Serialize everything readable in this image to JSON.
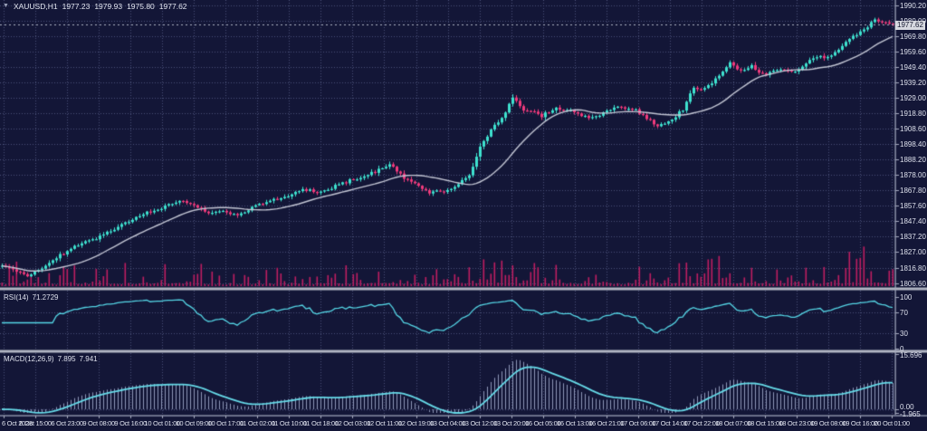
{
  "header": {
    "symbol": "XAUUSD,H1",
    "open": "1977.23",
    "high": "1979.93",
    "low": "1975.80",
    "close": "1977.62"
  },
  "indicators": {
    "rsi": {
      "label": "RSI(14)",
      "value": "71.2729"
    },
    "macd": {
      "label": "MACD(12,26,9)",
      "main": "7.895",
      "signal": "7.941"
    }
  },
  "chart_data": {
    "type": "candlestick",
    "symbol": "XAUUSD",
    "timeframe": "H1",
    "price_axis": {
      "ticks": [
        "1990.20",
        "1980.00",
        "1969.80",
        "1959.60",
        "1949.40",
        "1939.20",
        "1929.00",
        "1918.80",
        "1908.60",
        "1898.40",
        "1888.20",
        "1878.00",
        "1867.80",
        "1857.60",
        "1847.40",
        "1837.20",
        "1827.00",
        "1816.80",
        "1806.60"
      ],
      "top": 1990.2,
      "step": 10.2,
      "current": "1977.62"
    },
    "rsi_axis": {
      "ticks": [
        [
          "100",
          100
        ],
        [
          "70",
          70
        ],
        [
          "30",
          30
        ],
        [
          "0",
          0
        ]
      ],
      "levels": [
        70,
        30
      ]
    },
    "macd_axis": {
      "ticks": [
        [
          "15.696",
          15.696
        ],
        [
          "0.00",
          0
        ],
        [
          "-1.965",
          -1.965
        ]
      ]
    },
    "time_axis": {
      "labels": [
        "6 Oct 2023",
        "6 Oct 15:00",
        "6 Oct 23:00",
        "9 Oct 08:00",
        "9 Oct 16:00",
        "10 Oct 01:00",
        "10 Oct 09:00",
        "10 Oct 17:00",
        "11 Oct 02:00",
        "11 Oct 10:00",
        "11 Oct 18:00",
        "12 Oct 03:00",
        "12 Oct 11:00",
        "12 Oct 19:00",
        "13 Oct 04:00",
        "13 Oct 12:00",
        "13 Oct 20:00",
        "16 Oct 05:00",
        "16 Oct 13:00",
        "16 Oct 21:00",
        "17 Oct 06:00",
        "17 Oct 14:00",
        "17 Oct 22:00",
        "18 Oct 07:00",
        "18 Oct 15:00",
        "18 Oct 23:00",
        "19 Oct 08:00",
        "19 Oct 16:00",
        "20 Oct 01:00"
      ]
    },
    "series": {
      "bars": 247,
      "seed": 9,
      "noise": 1.4,
      "close_keyframes": [
        [
          0,
          1818
        ],
        [
          4,
          1814.5
        ],
        [
          7,
          1811
        ],
        [
          11,
          1816
        ],
        [
          14,
          1822
        ],
        [
          18,
          1828
        ],
        [
          22,
          1833
        ],
        [
          26,
          1836
        ],
        [
          31,
          1842
        ],
        [
          35,
          1847
        ],
        [
          40,
          1853
        ],
        [
          44,
          1856
        ],
        [
          49,
          1861
        ],
        [
          53,
          1859
        ],
        [
          57,
          1852
        ],
        [
          61,
          1854
        ],
        [
          65,
          1851
        ],
        [
          70,
          1857
        ],
        [
          74,
          1861
        ],
        [
          79,
          1864
        ],
        [
          83,
          1869
        ],
        [
          88,
          1866
        ],
        [
          92,
          1871
        ],
        [
          96,
          1874
        ],
        [
          100,
          1877
        ],
        [
          104,
          1881
        ],
        [
          107,
          1885
        ],
        [
          110,
          1878
        ],
        [
          114,
          1872
        ],
        [
          118,
          1866
        ],
        [
          123,
          1868
        ],
        [
          126,
          1871
        ],
        [
          129,
          1878
        ],
        [
          132,
          1896
        ],
        [
          135,
          1908
        ],
        [
          138,
          1916
        ],
        [
          141,
          1929
        ],
        [
          144,
          1921
        ],
        [
          149,
          1917
        ],
        [
          153,
          1922
        ],
        [
          158,
          1920
        ],
        [
          162,
          1915
        ],
        [
          166,
          1919
        ],
        [
          170,
          1923
        ],
        [
          175,
          1921
        ],
        [
          178,
          1915
        ],
        [
          181,
          1910
        ],
        [
          184,
          1913
        ],
        [
          188,
          1921
        ],
        [
          191,
          1936
        ],
        [
          193,
          1933
        ],
        [
          196,
          1938
        ],
        [
          199,
          1946
        ],
        [
          201,
          1953
        ],
        [
          204,
          1946
        ],
        [
          207,
          1950
        ],
        [
          210,
          1944
        ],
        [
          214,
          1948
        ],
        [
          219,
          1946
        ],
        [
          222,
          1952
        ],
        [
          225,
          1956
        ],
        [
          228,
          1955
        ],
        [
          231,
          1961
        ],
        [
          234,
          1967
        ],
        [
          236,
          1971
        ],
        [
          239,
          1976
        ],
        [
          241,
          1981
        ],
        [
          243,
          1979
        ],
        [
          246,
          1977.6
        ]
      ],
      "volume_envelope": [
        [
          0,
          0.45
        ],
        [
          7,
          0.65
        ],
        [
          14,
          0.4
        ],
        [
          22,
          0.55
        ],
        [
          31,
          0.5
        ],
        [
          40,
          0.6
        ],
        [
          49,
          0.7
        ],
        [
          57,
          0.45
        ],
        [
          65,
          0.4
        ],
        [
          74,
          0.5
        ],
        [
          83,
          0.45
        ],
        [
          92,
          0.55
        ],
        [
          100,
          0.6
        ],
        [
          107,
          0.75
        ],
        [
          114,
          0.5
        ],
        [
          123,
          0.45
        ],
        [
          129,
          0.7
        ],
        [
          134,
          0.95
        ],
        [
          141,
          0.85
        ],
        [
          146,
          0.7
        ],
        [
          149,
          0.8
        ],
        [
          155,
          0.55
        ],
        [
          162,
          0.5
        ],
        [
          170,
          0.45
        ],
        [
          178,
          0.5
        ],
        [
          184,
          0.5
        ],
        [
          191,
          0.65
        ],
        [
          199,
          0.7
        ],
        [
          204,
          0.75
        ],
        [
          210,
          0.65
        ],
        [
          219,
          0.55
        ],
        [
          225,
          0.65
        ],
        [
          231,
          0.7
        ],
        [
          236,
          0.85
        ],
        [
          241,
          1.0
        ],
        [
          246,
          0.55
        ]
      ]
    },
    "colors": {
      "bg": "#131637",
      "grid": "#4a5078",
      "bull": "#3ee1cf",
      "bear": "#f03a7c",
      "volume": "#be1d61",
      "ma": "#c3c6d4",
      "rsi_line": "#55d6e6",
      "macd_line": "#66dae8",
      "macd_hist": "#8e97b8",
      "separator": "#b1b5c3",
      "axis": "#a6abc0",
      "text": "#dde0ec",
      "current_line": "#aeb2c2",
      "price_box_bg": "#d7d9e0",
      "price_box_text": "#14172e"
    }
  }
}
